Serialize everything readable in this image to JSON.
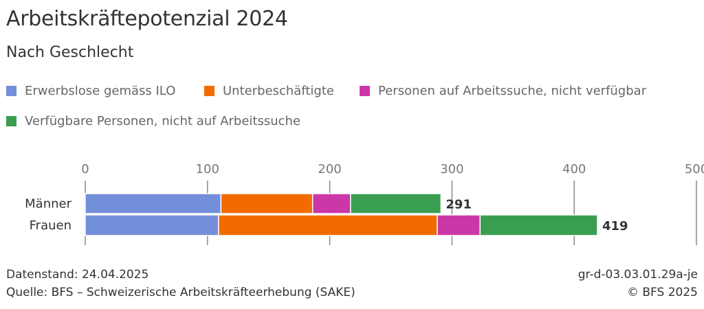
{
  "title": "Arbeitskräftepotenzial 2024",
  "subtitle": "Nach Geschlecht",
  "footer": {
    "date": "Datenstand: 24.04.2025",
    "source": "Quelle: BFS – Schweizerische Arbeitskräfteerhebung (SAKE)",
    "code": "gr-d-03.03.01.29a-je",
    "copyright": "© BFS 2025"
  },
  "chart_data": {
    "type": "bar",
    "orientation": "horizontal",
    "stacked": true,
    "title": "Arbeitskräftepotenzial 2024",
    "subtitle": "Nach Geschlecht",
    "categories": [
      "Männer",
      "Frauen"
    ],
    "series": [
      {
        "name": "Erwerbslose gemäss ILO",
        "color": "#748fd9",
        "values": [
          111,
          109
        ]
      },
      {
        "name": "Unterbeschäftigte",
        "color": "#f26b00",
        "values": [
          75,
          179
        ]
      },
      {
        "name": "Personen auf Arbeitssuche, nicht verfügbar",
        "color": "#cc37a8",
        "values": [
          31,
          35
        ]
      },
      {
        "name": "Verfügbare Personen, nicht auf Arbeitssuche",
        "color": "#3a9e51",
        "values": [
          74,
          96
        ]
      }
    ],
    "totals": [
      291,
      419
    ],
    "xlim": [
      0,
      500
    ],
    "xticks": [
      0,
      100,
      200,
      300,
      400,
      500
    ],
    "grid": true,
    "legend_position": "top"
  }
}
